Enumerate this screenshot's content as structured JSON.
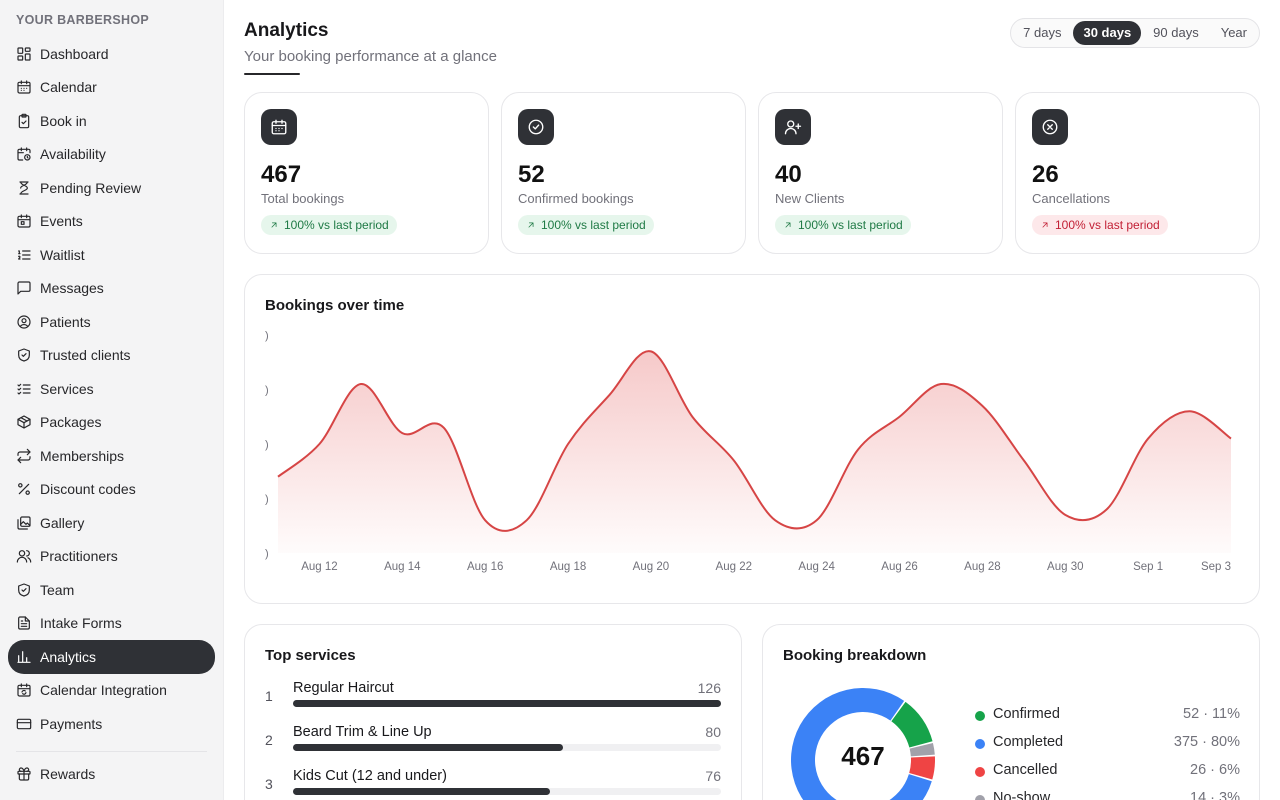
{
  "sidebar": {
    "brand": "YOUR BARBERSHOP",
    "items": [
      {
        "label": "Dashboard",
        "icon": "dashboard-icon"
      },
      {
        "label": "Calendar",
        "icon": "calendar-icon"
      },
      {
        "label": "Book in",
        "icon": "clipboard-check-icon"
      },
      {
        "label": "Availability",
        "icon": "calendar-clock-icon"
      },
      {
        "label": "Pending Review",
        "icon": "hourglass-icon"
      },
      {
        "label": "Events",
        "icon": "calendar-event-icon"
      },
      {
        "label": "Waitlist",
        "icon": "list-ordered-icon"
      },
      {
        "label": "Messages",
        "icon": "message-icon"
      },
      {
        "label": "Patients",
        "icon": "user-circle-icon"
      },
      {
        "label": "Trusted clients",
        "icon": "shield-check-icon"
      },
      {
        "label": "Services",
        "icon": "list-checks-icon"
      },
      {
        "label": "Packages",
        "icon": "package-icon"
      },
      {
        "label": "Memberships",
        "icon": "repeat-icon"
      },
      {
        "label": "Discount codes",
        "icon": "percent-icon"
      },
      {
        "label": "Gallery",
        "icon": "gallery-icon"
      },
      {
        "label": "Practitioners",
        "icon": "users-icon"
      },
      {
        "label": "Team",
        "icon": "shield-icon"
      },
      {
        "label": "Intake Forms",
        "icon": "file-text-icon"
      },
      {
        "label": "Analytics",
        "icon": "bar-chart-icon",
        "active": true
      },
      {
        "label": "Calendar Integration",
        "icon": "calendar-sync-icon"
      },
      {
        "label": "Payments",
        "icon": "credit-card-icon"
      }
    ],
    "footer_items": [
      {
        "label": "Rewards",
        "icon": "gift-icon"
      }
    ]
  },
  "header": {
    "title": "Analytics",
    "subtitle": "Your booking performance at a glance",
    "ranges": [
      "7 days",
      "30 days",
      "90 days",
      "Year"
    ],
    "active_range": "30 days"
  },
  "stats": [
    {
      "value": "467",
      "label": "Total bookings",
      "badge": "100% vs last period",
      "trend": "up",
      "icon": "calendar-icon"
    },
    {
      "value": "52",
      "label": "Confirmed bookings",
      "badge": "100% vs last period",
      "trend": "up",
      "icon": "check-circle-icon"
    },
    {
      "value": "40",
      "label": "New Clients",
      "badge": "100% vs last period",
      "trend": "up",
      "icon": "user-plus-icon"
    },
    {
      "value": "26",
      "label": "Cancellations",
      "badge": "100% vs last period",
      "trend": "down",
      "icon": "x-circle-icon"
    }
  ],
  "chart_data": {
    "type": "area",
    "title": "Bookings over time",
    "x": [
      "Aug 11",
      "Aug 12",
      "Aug 13",
      "Aug 14",
      "Aug 15",
      "Aug 16",
      "Aug 17",
      "Aug 18",
      "Aug 19",
      "Aug 20",
      "Aug 21",
      "Aug 22",
      "Aug 23",
      "Aug 24",
      "Aug 25",
      "Aug 26",
      "Aug 27",
      "Aug 28",
      "Aug 29",
      "Aug 30",
      "Aug 31",
      "Sep 1",
      "Sep 2",
      "Sep 3"
    ],
    "x_tick_labels": [
      "Aug 12",
      "Aug 14",
      "Aug 16",
      "Aug 18",
      "Aug 20",
      "Aug 22",
      "Aug 24",
      "Aug 26",
      "Aug 28",
      "Aug 30",
      "Sep 1",
      "Sep 3"
    ],
    "values": [
      14,
      20,
      31,
      22,
      23,
      6,
      6,
      20,
      29,
      37,
      25,
      17,
      6,
      6,
      19,
      25,
      31,
      27,
      17,
      7,
      8,
      21,
      26,
      21
    ],
    "ylim": [
      0,
      40
    ],
    "grid": false,
    "line_color": "#d64545",
    "fill_color": "#f3b7b7"
  },
  "top_services": {
    "title": "Top services",
    "items": [
      {
        "rank": "1",
        "name": "Regular Haircut",
        "count": 126,
        "fraction": 1.0
      },
      {
        "rank": "2",
        "name": "Beard Trim & Line Up",
        "count": 80,
        "fraction": 0.63
      },
      {
        "rank": "3",
        "name": "Kids Cut (12 and under)",
        "count": 76,
        "fraction": 0.6
      }
    ]
  },
  "breakdown": {
    "title": "Booking breakdown",
    "total": "467",
    "chart_data": {
      "type": "pie",
      "slices": [
        {
          "name": "Confirmed",
          "value": 52,
          "label": "52 · 11%",
          "color": "#16a34a"
        },
        {
          "name": "Completed",
          "value": 375,
          "label": "375 · 80%",
          "color": "#3b82f6"
        },
        {
          "name": "Cancelled",
          "value": 26,
          "label": "26 · 6%",
          "color": "#ef4444"
        },
        {
          "name": "No-show",
          "value": 14,
          "label": "14 · 3%",
          "color": "#a1a1aa"
        }
      ]
    }
  }
}
